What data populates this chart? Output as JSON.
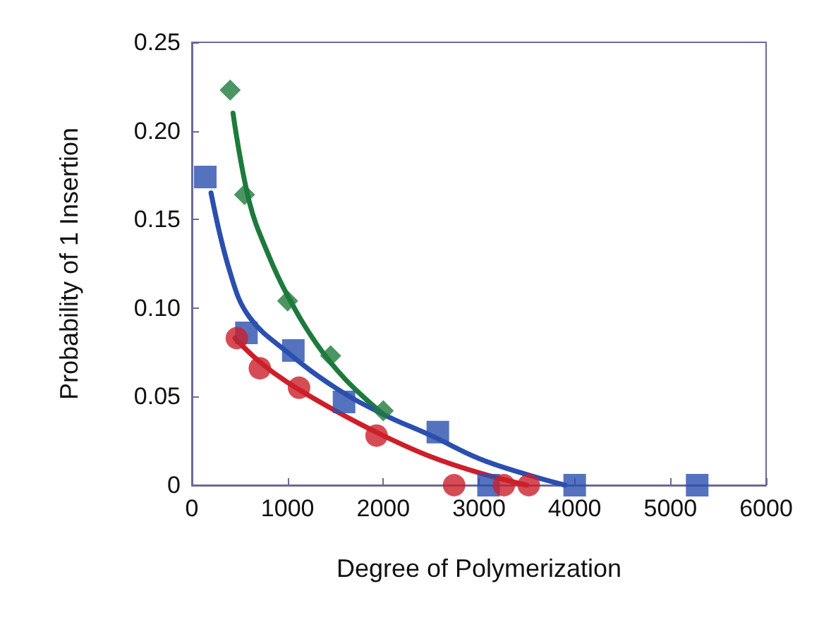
{
  "chart_data": {
    "type": "scatter",
    "xlabel": "Degree of Polymerization",
    "ylabel": "Probability of 1 Insertion",
    "xlim": [
      0,
      6000
    ],
    "xticks": [
      0,
      1000,
      2000,
      3000,
      4000,
      5000,
      6000
    ],
    "ylim": [
      0,
      0.25
    ],
    "yticks": [
      0,
      0.05,
      {
        "value": 0.1,
        "label": "0.10"
      },
      0.15,
      {
        "value": 0.2,
        "label": "0.20"
      },
      0.25
    ],
    "grid": false,
    "series": [
      {
        "color": "#1e7a3c",
        "marker": "diamond",
        "x": [
          400,
          550,
          1000,
          1450,
          2000
        ],
        "values": [
          0.223,
          0.164,
          0.104,
          0.073,
          0.042
        ]
      },
      {
        "color": "#2b4fae",
        "marker": "square",
        "x": [
          140,
          570,
          1060,
          1590,
          2570,
          3100,
          4000,
          5280
        ],
        "values": [
          0.174,
          0.086,
          0.076,
          0.047,
          0.03,
          0,
          0,
          0
        ]
      },
      {
        "color": "#cc1f2a",
        "marker": "circle",
        "x": [
          470,
          710,
          1120,
          1930,
          2740,
          3260,
          3520
        ],
        "values": [
          0.083,
          0.066,
          0.055,
          0.028,
          0,
          0,
          0
        ]
      },
      {
        "type": "line",
        "color": "#1e7a3c",
        "marker": "none",
        "x": [
          430,
          600,
          800,
          1000,
          1300,
          1600,
          2000
        ],
        "values": [
          0.21,
          0.16,
          0.13,
          0.107,
          0.08,
          0.06,
          0.04
        ]
      },
      {
        "type": "line",
        "color": "#2b4fae",
        "marker": "none",
        "x": [
          200,
          400,
          600,
          1000,
          1500,
          2000,
          2500,
          3000,
          3500,
          3900
        ],
        "values": [
          0.165,
          0.12,
          0.095,
          0.075,
          0.055,
          0.04,
          0.028,
          0.015,
          0.006,
          0
        ]
      },
      {
        "type": "line",
        "color": "#cc1f2a",
        "marker": "none",
        "x": [
          450,
          700,
          1000,
          1500,
          2000,
          2500,
          3000,
          3500
        ],
        "values": [
          0.083,
          0.07,
          0.058,
          0.042,
          0.028,
          0.016,
          0.007,
          0
        ]
      }
    ]
  }
}
